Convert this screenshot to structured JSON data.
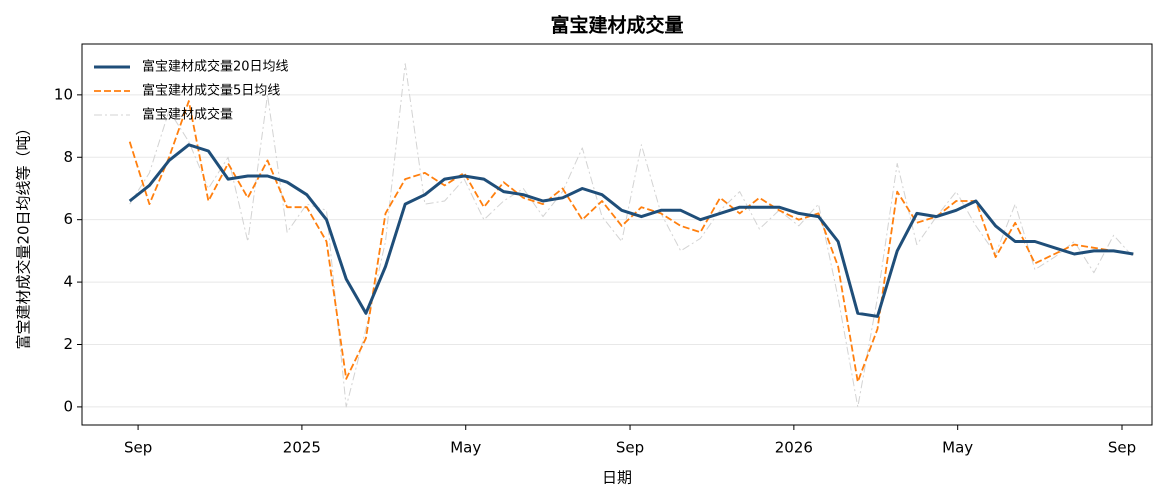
{
  "chart_data": {
    "type": "line",
    "title": "富宝建材成交量",
    "xlabel": "日期",
    "ylabel": "富宝建材成交量20日均线等（吨）",
    "x": [
      2024.65,
      2024.69,
      2024.73,
      2024.77,
      2024.81,
      2024.85,
      2024.89,
      2024.93,
      2024.97,
      2025.01,
      2025.05,
      2025.09,
      2025.13,
      2025.17,
      2025.21,
      2025.25,
      2025.29,
      2025.33,
      2025.37,
      2025.41,
      2025.45,
      2025.49,
      2025.53,
      2025.57,
      2025.61,
      2025.65,
      2025.69,
      2025.73,
      2025.77,
      2025.81,
      2025.85,
      2025.89,
      2025.93,
      2025.97,
      2026.01,
      2026.05,
      2026.09,
      2026.13,
      2026.17,
      2026.21,
      2026.25,
      2026.29,
      2026.33,
      2026.37,
      2026.41,
      2026.45,
      2026.49,
      2026.53,
      2026.57,
      2026.61,
      2026.65,
      2026.69
    ],
    "series": [
      {
        "name": "富宝建材成交量20日均线",
        "color": "#1f4e79",
        "style": "solid",
        "width": 3,
        "values": [
          6.6,
          7.1,
          7.9,
          8.4,
          8.2,
          7.3,
          7.4,
          7.4,
          7.2,
          6.8,
          6.0,
          4.1,
          3.0,
          4.5,
          6.5,
          6.8,
          7.3,
          7.4,
          7.3,
          6.9,
          6.8,
          6.6,
          6.7,
          7.0,
          6.8,
          6.3,
          6.1,
          6.3,
          6.3,
          6.0,
          6.2,
          6.4,
          6.4,
          6.4,
          6.2,
          6.1,
          5.3,
          3.0,
          2.9,
          5.0,
          6.2,
          6.1,
          6.3,
          6.6,
          5.8,
          5.3,
          5.3,
          5.1,
          4.9,
          5.0,
          5.0,
          4.9
        ]
      },
      {
        "name": "富宝建材成交量5日均线",
        "color": "#ff7f0e",
        "style": "dashed",
        "width": 1.8,
        "values": [
          8.5,
          6.5,
          8.0,
          9.8,
          6.6,
          7.8,
          6.7,
          7.9,
          6.4,
          6.4,
          5.3,
          0.9,
          2.2,
          6.2,
          7.3,
          7.5,
          7.1,
          7.5,
          6.4,
          7.2,
          6.7,
          6.5,
          7.0,
          6.0,
          6.6,
          5.8,
          6.4,
          6.2,
          5.8,
          5.6,
          6.7,
          6.2,
          6.7,
          6.3,
          6.0,
          6.2,
          4.5,
          0.8,
          2.5,
          6.9,
          5.9,
          6.1,
          6.6,
          6.6,
          4.8,
          5.9,
          4.6,
          4.9,
          5.2,
          5.1,
          5.0,
          4.9
        ]
      },
      {
        "name": "富宝建材成交量",
        "color": "#d3d3d3",
        "style": "dashdot",
        "width": 1,
        "values": [
          6.5,
          7.5,
          9.5,
          8.5,
          7.0,
          8.0,
          5.3,
          10.0,
          5.6,
          6.5,
          6.3,
          0,
          2.5,
          5.3,
          11.0,
          6.5,
          6.6,
          7.3,
          6.0,
          6.6,
          7.0,
          6.1,
          6.9,
          8.3,
          6.1,
          5.3,
          8.4,
          6.2,
          5.0,
          5.4,
          6.3,
          6.9,
          5.7,
          6.3,
          5.8,
          6.5,
          3.5,
          0,
          3.5,
          7.8,
          5.2,
          6.1,
          6.9,
          5.8,
          4.9,
          6.5,
          4.4,
          4.8,
          5.3,
          4.3,
          5.5,
          4.8
        ]
      }
    ],
    "xlim": [
      2024.553,
      2026.728
    ],
    "xticks": [
      {
        "value": 2024.667,
        "label": "Sep"
      },
      2025,
      {
        "value": 2025.333,
        "label": "May"
      },
      {
        "value": 2025.667,
        "label": "Sep"
      },
      2026,
      {
        "value": 2026.333,
        "label": "May"
      },
      {
        "value": 2026.667,
        "label": "Sep"
      }
    ],
    "ylim": [
      -0.58,
      11.63
    ],
    "yticks": [
      0,
      2,
      4,
      6,
      8,
      10
    ],
    "grid": true,
    "legend": "upper-left"
  }
}
